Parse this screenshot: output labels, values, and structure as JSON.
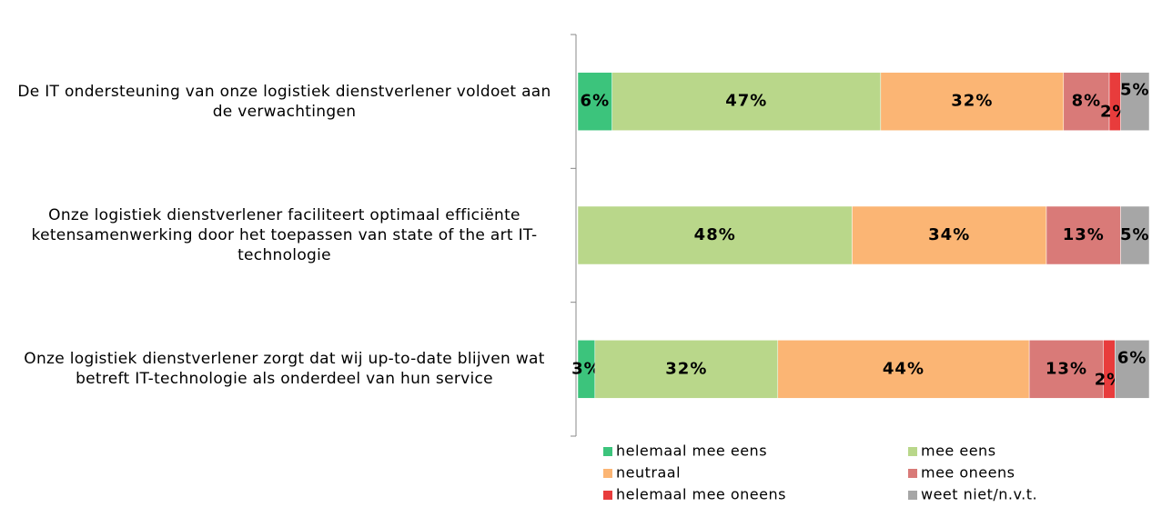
{
  "chart_data": {
    "type": "stacked-barh",
    "categories": [
      "De IT ondersteuning van onze logistiek dienstverlener voldoet aan de verwachtingen",
      "Onze logistiek dienstverlener faciliteert optimaal efficiënte ketensamenwerking door het toepassen van state of the art IT-technologie",
      "Onze logistiek dienstverlener zorgt dat wij up-to-date blijven wat betreft IT-technologie als onderdeel van hun service"
    ],
    "series": [
      {
        "name": "helemaal mee eens",
        "color": "#3cc47c",
        "values": [
          6,
          null,
          3
        ],
        "value_labels": [
          "6%",
          null,
          "3%"
        ]
      },
      {
        "name": "mee eens",
        "color": "#b9d78a",
        "values": [
          47,
          48,
          32
        ],
        "value_labels": [
          "47%",
          "48%",
          "32%"
        ]
      },
      {
        "name": "neutraal",
        "color": "#fbb574",
        "values": [
          32,
          34,
          44
        ],
        "value_labels": [
          "32%",
          "34%",
          "44%"
        ]
      },
      {
        "name": "mee oneens",
        "color": "#d97a78",
        "values": [
          8,
          13,
          13
        ],
        "value_labels": [
          "8%",
          "13%",
          "13%"
        ]
      },
      {
        "name": "helemaal mee oneens",
        "color": "#e83c3c",
        "values": [
          2,
          null,
          2
        ],
        "value_labels": [
          "2%",
          null,
          "2%"
        ]
      },
      {
        "name": "weet niet/n.v.t.",
        "color": "#a6a6a6",
        "values": [
          5,
          5,
          6
        ],
        "value_labels": [
          "5%",
          "5%",
          "6%"
        ]
      }
    ],
    "xlim": [
      0,
      100
    ]
  }
}
